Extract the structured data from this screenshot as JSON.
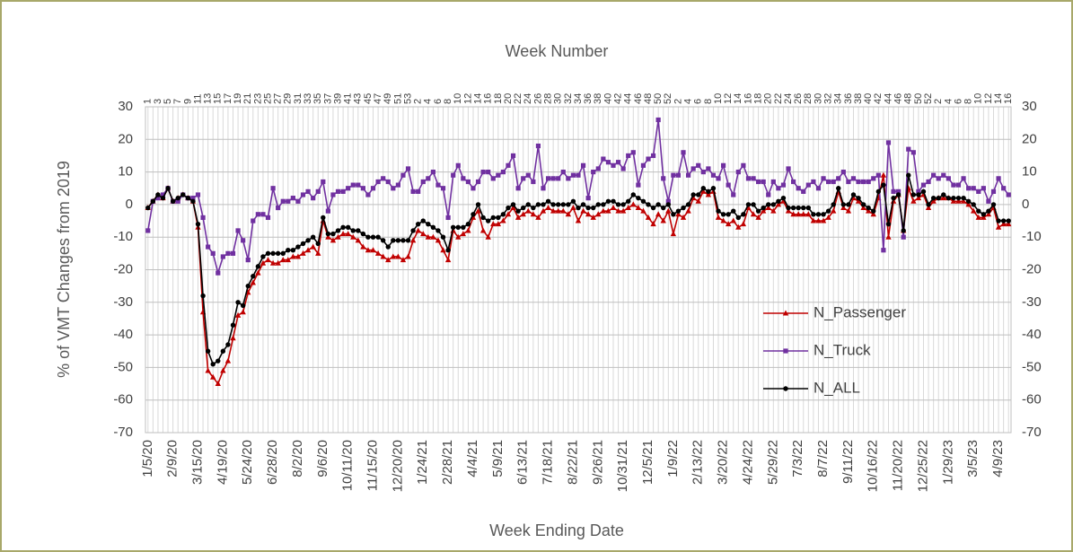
{
  "chart_data": {
    "type": "line",
    "title": "Week Number",
    "x_label": "Week Ending Date",
    "y_label": "% of VMT Changes from 2019",
    "categories": [
      "1/5/20",
      null,
      null,
      null,
      null,
      "2/9/20",
      null,
      null,
      null,
      null,
      "3/15/20",
      null,
      null,
      null,
      null,
      "4/19/20",
      null,
      null,
      null,
      null,
      "5/24/20",
      null,
      null,
      null,
      null,
      "6/28/20",
      null,
      null,
      null,
      null,
      "8/2/20",
      null,
      null,
      null,
      null,
      "9/6/20",
      null,
      null,
      null,
      null,
      "10/11/20",
      null,
      null,
      null,
      null,
      "11/15/20",
      null,
      null,
      null,
      null,
      "12/20/20",
      null,
      null,
      null,
      null,
      "1/24/21",
      null,
      null,
      null,
      null,
      "2/28/21",
      null,
      null,
      null,
      null,
      "4/4/21",
      null,
      null,
      null,
      null,
      "5/9/21",
      null,
      null,
      null,
      null,
      "6/13/21",
      null,
      null,
      null,
      null,
      "7/18/21",
      null,
      null,
      null,
      null,
      "8/22/21",
      null,
      null,
      null,
      null,
      "9/26/21",
      null,
      null,
      null,
      null,
      "10/31/21",
      null,
      null,
      null,
      null,
      "12/5/21",
      null,
      null,
      null,
      null,
      "1/9/22",
      null,
      null,
      null,
      null,
      "2/13/22",
      null,
      null,
      null,
      null,
      "3/20/22",
      null,
      null,
      null,
      null,
      "4/24/22",
      null,
      null,
      null,
      null,
      "5/29/22",
      null,
      null,
      null,
      null,
      "7/3/22",
      null,
      null,
      null,
      null,
      "8/7/22",
      null,
      null,
      null,
      null,
      "9/11/22",
      null,
      null,
      null,
      null,
      "10/16/22",
      null,
      null,
      null,
      null,
      "11/20/22",
      null,
      null,
      null,
      null,
      "12/25/22",
      null,
      null,
      null,
      null,
      "1/29/23",
      null,
      null,
      null,
      null,
      "3/5/23",
      null,
      null,
      null,
      null,
      "4/9/23",
      null,
      null
    ],
    "top_categories": [
      1,
      null,
      3,
      null,
      5,
      null,
      7,
      null,
      9,
      null,
      11,
      null,
      13,
      null,
      15,
      null,
      17,
      null,
      19,
      null,
      21,
      null,
      23,
      null,
      25,
      null,
      27,
      null,
      29,
      null,
      31,
      null,
      33,
      null,
      35,
      null,
      37,
      null,
      39,
      null,
      41,
      null,
      43,
      null,
      45,
      null,
      47,
      null,
      49,
      null,
      51,
      null,
      53,
      null,
      2,
      null,
      4,
      null,
      6,
      null,
      8,
      null,
      10,
      null,
      12,
      null,
      14,
      null,
      16,
      null,
      18,
      null,
      20,
      null,
      22,
      null,
      24,
      null,
      26,
      null,
      28,
      null,
      30,
      null,
      32,
      null,
      34,
      null,
      36,
      null,
      38,
      null,
      40,
      null,
      42,
      null,
      44,
      null,
      46,
      null,
      48,
      null,
      50,
      null,
      52,
      null,
      2,
      null,
      4,
      null,
      6,
      null,
      8,
      null,
      10,
      null,
      12,
      null,
      14,
      null,
      16,
      null,
      18,
      null,
      20,
      null,
      22,
      null,
      24,
      null,
      26,
      null,
      28,
      null,
      30,
      null,
      32,
      null,
      34,
      null,
      36,
      null,
      38,
      null,
      40,
      null,
      42,
      null,
      44,
      null,
      46,
      null,
      48,
      null,
      50,
      null,
      52,
      null,
      2,
      null,
      4,
      null,
      6,
      null,
      8,
      null,
      10,
      null,
      12,
      null,
      14,
      null,
      16
    ],
    "series": [
      {
        "name": "N_Passenger",
        "color": "#c00000",
        "marker": "triangle",
        "values": [
          -1,
          1,
          3,
          2,
          5,
          1,
          2,
          3,
          2,
          1,
          -7,
          -33,
          -51,
          -53,
          -55,
          -51,
          -48,
          -41,
          -34,
          -33,
          -27,
          -24,
          -21,
          -18,
          -17,
          -18,
          -18,
          -17,
          -17,
          -16,
          -16,
          -15,
          -14,
          -13,
          -15,
          -5,
          -10,
          -11,
          -10,
          -9,
          -9,
          -10,
          -11,
          -13,
          -14,
          -14,
          -15,
          -16,
          -17,
          -16,
          -16,
          -17,
          -16,
          -11,
          -8,
          -9,
          -10,
          -10,
          -11,
          -14,
          -17,
          -8,
          -10,
          -9,
          -8,
          -4,
          -2,
          -8,
          -10,
          -6,
          -6,
          -5,
          -3,
          -1,
          -4,
          -3,
          -2,
          -3,
          -4,
          -2,
          -1,
          -2,
          -2,
          -2,
          -3,
          -1,
          -5,
          -2,
          -3,
          -4,
          -3,
          -2,
          -2,
          -1,
          -2,
          -2,
          -1,
          0,
          -1,
          -2,
          -4,
          -6,
          -3,
          -5,
          -2,
          -9,
          -3,
          -4,
          -2,
          2,
          1,
          4,
          3,
          4,
          -4,
          -5,
          -6,
          -5,
          -7,
          -6,
          -1,
          -3,
          -4,
          -2,
          -1,
          -2,
          0,
          1,
          -2,
          -3,
          -3,
          -3,
          -3,
          -5,
          -5,
          -5,
          -4,
          -2,
          4,
          -1,
          -2,
          2,
          1,
          -1,
          -2,
          -3,
          2,
          9,
          -10,
          1,
          3,
          -8,
          5,
          1,
          2,
          3,
          -1,
          1,
          2,
          2,
          2,
          1,
          1,
          1,
          0,
          -2,
          -4,
          -4,
          -3,
          -1,
          -7,
          -6,
          -6
        ]
      },
      {
        "name": "N_Truck",
        "color": "#7030a0",
        "marker": "square",
        "values": [
          -8,
          1,
          2,
          3,
          5,
          1,
          1,
          3,
          2,
          2,
          3,
          -4,
          -13,
          -15,
          -21,
          -16,
          -15,
          -15,
          -8,
          -11,
          -17,
          -5,
          -3,
          -3,
          -4,
          5,
          -1,
          1,
          1,
          2,
          1,
          3,
          4,
          2,
          4,
          7,
          -2,
          3,
          4,
          4,
          5,
          6,
          6,
          5,
          3,
          5,
          7,
          8,
          7,
          5,
          6,
          9,
          11,
          4,
          4,
          7,
          8,
          10,
          6,
          5,
          -4,
          9,
          12,
          8,
          7,
          5,
          7,
          10,
          10,
          8,
          9,
          10,
          12,
          15,
          5,
          8,
          9,
          7,
          18,
          5,
          8,
          8,
          8,
          10,
          8,
          9,
          9,
          12,
          2,
          10,
          11,
          14,
          13,
          12,
          13,
          11,
          15,
          16,
          6,
          12,
          14,
          15,
          26,
          8,
          1,
          9,
          9,
          16,
          9,
          11,
          12,
          10,
          11,
          9,
          8,
          12,
          6,
          3,
          10,
          12,
          8,
          8,
          7,
          7,
          3,
          7,
          5,
          6,
          11,
          7,
          5,
          4,
          6,
          7,
          5,
          8,
          7,
          7,
          8,
          10,
          7,
          8,
          7,
          7,
          7,
          8,
          9,
          -14,
          19,
          4,
          4,
          -10,
          17,
          16,
          4,
          6,
          7,
          9,
          8,
          9,
          8,
          6,
          6,
          8,
          5,
          5,
          4,
          5,
          1,
          4,
          8,
          5,
          3
        ]
      },
      {
        "name": "N_ALL",
        "color": "#000000",
        "marker": "circle",
        "values": [
          -1,
          1,
          3,
          2,
          5,
          1,
          2,
          3,
          2,
          1,
          -6,
          -28,
          -45,
          -49,
          -48,
          -45,
          -43,
          -37,
          -30,
          -31,
          -25,
          -22,
          -19,
          -16,
          -15,
          -15,
          -15,
          -15,
          -14,
          -14,
          -13,
          -12,
          -11,
          -10,
          -12,
          -4,
          -9,
          -9,
          -8,
          -7,
          -7,
          -8,
          -8,
          -9,
          -10,
          -10,
          -10,
          -11,
          -13,
          -11,
          -11,
          -11,
          -11,
          -8,
          -6,
          -5,
          -6,
          -7,
          -8,
          -10,
          -14,
          -7,
          -7,
          -7,
          -6,
          -3,
          0,
          -4,
          -5,
          -4,
          -4,
          -3,
          -1,
          0,
          -2,
          -1,
          0,
          -1,
          0,
          0,
          1,
          0,
          0,
          0,
          0,
          1,
          -1,
          0,
          -1,
          -1,
          0,
          0,
          1,
          1,
          0,
          0,
          1,
          3,
          2,
          1,
          0,
          -1,
          0,
          -1,
          0,
          -3,
          -2,
          -1,
          0,
          3,
          3,
          5,
          4,
          5,
          -2,
          -3,
          -3,
          -2,
          -4,
          -3,
          0,
          0,
          -2,
          -1,
          0,
          0,
          1,
          2,
          -1,
          -1,
          -1,
          -1,
          -1,
          -3,
          -3,
          -3,
          -2,
          0,
          5,
          0,
          0,
          3,
          2,
          0,
          -1,
          -2,
          4,
          6,
          -6,
          2,
          3,
          -8,
          9,
          3,
          3,
          4,
          0,
          2,
          2,
          3,
          2,
          2,
          2,
          2,
          1,
          0,
          -2,
          -3,
          -2,
          0,
          -5,
          -5,
          -5
        ]
      }
    ],
    "ylim": [
      -70,
      30
    ],
    "yticks": [
      -70,
      -60,
      -50,
      -40,
      -30,
      -20,
      -10,
      0,
      10,
      20,
      30
    ],
    "y2lim": [
      -70,
      30
    ],
    "y2ticks": [
      -70,
      -60,
      -50,
      -40,
      -30,
      -20,
      -10,
      0,
      10,
      20,
      30
    ],
    "grid": true,
    "legend": "right"
  }
}
